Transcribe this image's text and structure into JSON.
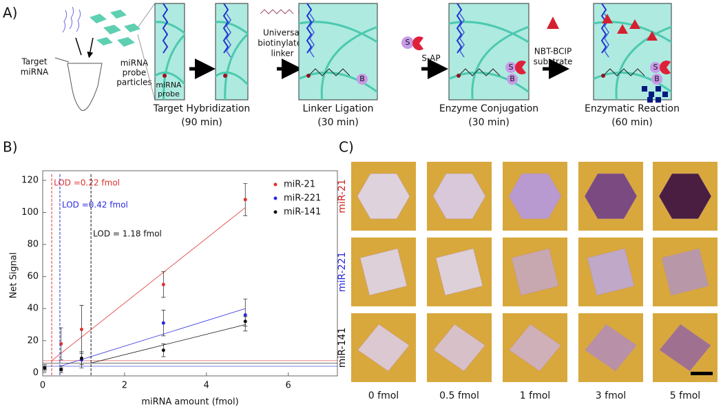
{
  "panel_a": {
    "label": "A)",
    "target": [
      "Target",
      "miRNA"
    ],
    "particles": [
      "miRNA",
      "probe",
      "particles"
    ],
    "probe": [
      "miRNA",
      "probe"
    ],
    "linker": [
      "Universal",
      "biotinylated",
      "linker"
    ],
    "sap": "S-AP",
    "substrate": [
      "NBT-BCIP",
      "substrate"
    ],
    "biotin": "B",
    "streptavidin": "S",
    "steps": [
      {
        "name": "Target Hybridization",
        "time": "(90 min)"
      },
      {
        "name": "Linker Ligation",
        "time": "(30 min)"
      },
      {
        "name": "Enzyme Conjugation",
        "time": "(30 min)"
      },
      {
        "name": "Enzymatic Reaction",
        "time": "(60 min)"
      }
    ]
  },
  "chart_data": {
    "type": "scatter",
    "label": "B)",
    "x_label": "miRNA amount (fmol)",
    "y_label": "Net Signal",
    "xlim": [
      0,
      7.2
    ],
    "ylim": [
      -2,
      126
    ],
    "xticks": [
      0,
      2,
      4,
      6
    ],
    "yticks": [
      0,
      20,
      40,
      60,
      80,
      100,
      120
    ],
    "legend": "upper right",
    "series": [
      {
        "name": "miR-21",
        "color": "#e03030",
        "x": [
          0.05,
          0.45,
          0.95,
          2.95,
          4.95
        ],
        "values": [
          3,
          18,
          27,
          55,
          108
        ],
        "errors": [
          2,
          10,
          15,
          8,
          10
        ],
        "fit_x": [
          0.22,
          4.95
        ],
        "fit_values": [
          7.5,
          103
        ],
        "threshold": 7.5,
        "lod": {
          "value": 0.22,
          "label": "LOD =0.22 fmol"
        }
      },
      {
        "name": "miR-221",
        "color": "#2a2ae0",
        "x": [
          0.05,
          0.45,
          0.95,
          2.95,
          4.95
        ],
        "values": [
          3,
          2,
          8,
          31,
          36
        ],
        "errors": [
          1,
          2,
          5,
          8,
          10
        ],
        "fit_x": [
          0.42,
          4.95
        ],
        "fit_values": [
          4,
          40
        ],
        "threshold": 4,
        "lod": {
          "value": 0.42,
          "label": "LOD =0.42 fmol"
        }
      },
      {
        "name": "miR-141",
        "color": "#111111",
        "x": [
          0.05,
          0.45,
          0.95,
          2.95,
          4.95
        ],
        "values": [
          3,
          2,
          9,
          14,
          32
        ],
        "errors": [
          1,
          1,
          4,
          4,
          3
        ],
        "fit_x": [
          1.18,
          4.95
        ],
        "fit_values": [
          6,
          30
        ],
        "threshold": 6,
        "lod": {
          "value": 1.18,
          "label": "LOD = 1.18 fmol"
        }
      }
    ]
  },
  "panel_c": {
    "label": "C)",
    "rows": [
      {
        "name": "miR-21",
        "color": "#d42020"
      },
      {
        "name": "miR-221",
        "color": "#2a2ae0"
      },
      {
        "name": "miR-141",
        "color": "#111111"
      }
    ],
    "columns": [
      "0 fmol",
      "0.5 fmol",
      "1 fmol",
      "3 fmol",
      "5 fmol"
    ],
    "tints": [
      [
        "#ded2dc",
        "#d8c8da",
        "#b89ad0",
        "#7a4a80",
        "#4a1e40"
      ],
      [
        "#ddd0d8",
        "#ddd0d8",
        "#c8a8b0",
        "#c0a8c8",
        "#b898a8"
      ],
      [
        "#dcc8d0",
        "#d8c0c8",
        "#d0b0b8",
        "#b890a8",
        "#a07090"
      ]
    ]
  }
}
